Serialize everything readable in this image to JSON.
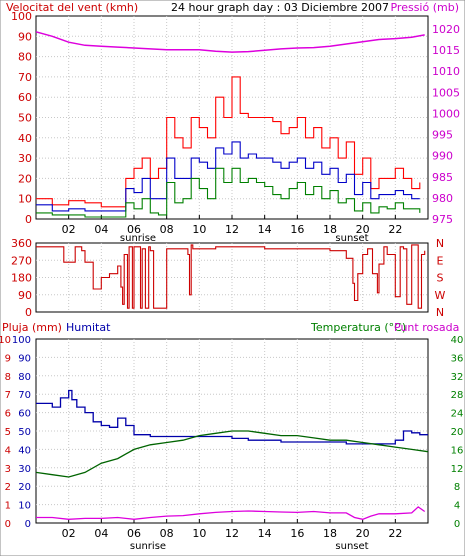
{
  "chart_data": [
    {
      "type": "line",
      "title": "24 hour graph day : 03 Diciembre 2007",
      "left_axis_label": "Velocitat del vent (kmh)",
      "right_axis_label": "Pressió (mb)",
      "left_ticks": [
        "0",
        "10",
        "20",
        "30",
        "40",
        "50",
        "60",
        "70",
        "80",
        "90",
        "100"
      ],
      "right_ticks": [
        "975",
        "980",
        "985",
        "990",
        "995",
        "1000",
        "1005",
        "1010",
        "1015",
        "1020"
      ],
      "ylim_left": [
        0,
        100
      ],
      "ylim_right": [
        975,
        1020
      ],
      "x_ticks": [
        "02",
        "04",
        "06",
        "08",
        "10",
        "12",
        "14",
        "16",
        "18",
        "20",
        "22"
      ],
      "xlim_hours": [
        0,
        24
      ],
      "annotations": {
        "sunrise": "sunrise",
        "sunset": "sunset"
      },
      "sunrise_hour": 6.5,
      "sunset_hour": 18.8,
      "colors": {
        "gust": "#ff0000",
        "wind_avg": "#0000c8",
        "wind_min": "#008000",
        "pressure": "#dd00dd"
      },
      "series": [
        {
          "key": "gust",
          "axis": "left",
          "x": [
            0,
            1,
            2,
            3,
            4,
            5,
            5.5,
            6,
            6.5,
            7,
            7.5,
            8,
            8.5,
            9,
            9.5,
            10,
            10.5,
            11,
            11.5,
            12,
            12.5,
            13,
            13.5,
            14,
            14.5,
            15,
            15.5,
            16,
            16.5,
            17,
            17.5,
            18,
            18.5,
            19,
            19.5,
            20,
            20.5,
            21,
            21.5,
            22,
            22.5,
            23,
            23.5
          ],
          "values": [
            10,
            7,
            9,
            8,
            6,
            6,
            20,
            25,
            30,
            20,
            25,
            50,
            40,
            35,
            50,
            45,
            40,
            60,
            50,
            70,
            52,
            50,
            50,
            50,
            48,
            42,
            45,
            50,
            40,
            45,
            35,
            40,
            30,
            38,
            22,
            30,
            15,
            20,
            20,
            25,
            20,
            15,
            18
          ]
        },
        {
          "key": "wind_avg",
          "axis": "left",
          "x": [
            0,
            1,
            2,
            3,
            4,
            5,
            5.5,
            6,
            6.5,
            7,
            7.5,
            8,
            8.5,
            9,
            9.5,
            10,
            10.5,
            11,
            11.5,
            12,
            12.5,
            13,
            13.5,
            14,
            14.5,
            15,
            15.5,
            16,
            16.5,
            17,
            17.5,
            18,
            18.5,
            19,
            19.5,
            20,
            20.5,
            21,
            21.5,
            22,
            22.5,
            23,
            23.5
          ],
          "values": [
            7,
            4,
            5,
            4,
            4,
            4,
            15,
            13,
            20,
            10,
            10,
            30,
            20,
            20,
            30,
            28,
            25,
            35,
            32,
            38,
            30,
            32,
            30,
            30,
            28,
            25,
            28,
            30,
            25,
            28,
            22,
            25,
            18,
            22,
            12,
            18,
            10,
            12,
            12,
            14,
            12,
            10,
            10
          ]
        },
        {
          "key": "wind_min",
          "axis": "left",
          "x": [
            0,
            1,
            2,
            3,
            4,
            5,
            5.5,
            6,
            6.5,
            7,
            7.5,
            8,
            8.5,
            9,
            9.5,
            10,
            10.5,
            11,
            11.5,
            12,
            12.5,
            13,
            13.5,
            14,
            14.5,
            15,
            15.5,
            16,
            16.5,
            17,
            17.5,
            18,
            18.5,
            19,
            19.5,
            20,
            20.5,
            21,
            21.5,
            22,
            22.5,
            23,
            23.5
          ],
          "values": [
            3,
            2,
            2,
            1,
            1,
            1,
            8,
            5,
            10,
            3,
            2,
            18,
            8,
            10,
            20,
            15,
            10,
            25,
            18,
            25,
            18,
            20,
            18,
            16,
            12,
            10,
            15,
            18,
            12,
            16,
            10,
            14,
            8,
            10,
            4,
            8,
            3,
            6,
            5,
            8,
            5,
            5,
            3
          ]
        },
        {
          "key": "pressure",
          "axis": "right",
          "x": [
            0,
            1,
            2,
            3,
            4,
            5,
            6,
            7,
            8,
            9,
            10,
            11,
            12,
            13,
            14,
            15,
            16,
            17,
            18,
            19,
            20,
            21,
            22,
            23,
            23.8
          ],
          "values": [
            1016.5,
            1015.5,
            1014.2,
            1013.5,
            1013.3,
            1013.1,
            1012.9,
            1012.7,
            1012.5,
            1012.5,
            1012.5,
            1012.2,
            1012.0,
            1012.1,
            1012.4,
            1012.7,
            1012.9,
            1013.0,
            1013.3,
            1013.8,
            1014.3,
            1014.8,
            1015.0,
            1015.3,
            1015.8
          ]
        }
      ]
    },
    {
      "type": "line",
      "left_ticks": [
        "0",
        "90",
        "180",
        "270",
        "360"
      ],
      "right_ticks": [
        "N",
        "W",
        "S",
        "E",
        "N"
      ],
      "ylim_left": [
        0,
        360
      ],
      "xlim_hours": [
        0,
        24
      ],
      "colors": {
        "direction": "#cc0000"
      },
      "series": [
        {
          "key": "direction",
          "x": [
            0,
            1.5,
            1.7,
            2.2,
            2.4,
            2.8,
            3.0,
            3.5,
            4.0,
            4.5,
            5.0,
            5.2,
            5.3,
            5.4,
            5.6,
            5.7,
            5.9,
            6.0,
            6.4,
            6.5,
            6.7,
            6.9,
            7.0,
            7.2,
            8.0,
            9.0,
            9.3,
            9.4,
            9.5,
            9.6,
            10.0,
            11.0,
            12.0,
            13.0,
            14.0,
            15.0,
            16.0,
            17.0,
            18.0,
            18.5,
            19.0,
            19.4,
            19.5,
            19.7,
            20.0,
            20.3,
            20.6,
            20.9,
            21.0,
            21.3,
            21.5,
            22.0,
            22.3,
            22.5,
            22.7,
            23.0,
            23.2,
            23.4,
            23.6,
            23.8
          ],
          "values": [
            340,
            340,
            260,
            260,
            340,
            320,
            260,
            120,
            180,
            200,
            240,
            130,
            40,
            300,
            20,
            340,
            20,
            340,
            20,
            330,
            20,
            340,
            320,
            20,
            330,
            330,
            300,
            90,
            350,
            330,
            330,
            340,
            340,
            340,
            330,
            330,
            330,
            330,
            320,
            320,
            280,
            150,
            60,
            200,
            300,
            330,
            200,
            100,
            250,
            340,
            300,
            80,
            340,
            330,
            40,
            350,
            350,
            20,
            300,
            320
          ]
        }
      ]
    },
    {
      "type": "line",
      "left_axis_label_1": "Pluja (mm)",
      "left_axis_label_2": "Humitat",
      "right_axis_label_1": "Temperatura (°C)",
      "right_axis_label_2": "Punt rosada",
      "left_ticks_rain": [
        "0",
        "1",
        "2",
        "3",
        "4",
        "5",
        "6",
        "7",
        "8",
        "9",
        "10"
      ],
      "left_ticks_humidity": [
        "0",
        "10",
        "20",
        "30",
        "40",
        "50",
        "60",
        "70",
        "80",
        "90",
        "100"
      ],
      "right_ticks": [
        "0",
        "4",
        "8",
        "12",
        "16",
        "20",
        "24",
        "28",
        "32",
        "36",
        "40"
      ],
      "ylim_humidity": [
        0,
        100
      ],
      "ylim_temp": [
        0,
        40
      ],
      "x_ticks": [
        "02",
        "04",
        "06",
        "08",
        "10",
        "12",
        "14",
        "16",
        "18",
        "20",
        "22"
      ],
      "xlim_hours": [
        0,
        24
      ],
      "annotations": {
        "sunrise": "sunrise",
        "sunset": "sunset"
      },
      "colors": {
        "humidity": "#0000aa",
        "temperature": "#006400",
        "dew_point": "#dd00dd"
      },
      "series": [
        {
          "key": "humidity",
          "axis": "humidity",
          "x": [
            0,
            0.5,
            1,
            1.5,
            2,
            2.2,
            2.5,
            3,
            3.5,
            4,
            4.5,
            5,
            5.5,
            6,
            6.5,
            7,
            8,
            9,
            10,
            11,
            12,
            13,
            14,
            15,
            16,
            17,
            18,
            19,
            20,
            21,
            22,
            22.5,
            23,
            23.5,
            24
          ],
          "values": [
            65,
            65,
            63,
            68,
            72,
            67,
            63,
            60,
            55,
            53,
            52,
            57,
            53,
            48,
            48,
            47,
            47,
            47,
            47,
            47,
            46,
            45,
            45,
            44,
            44,
            44,
            44,
            43,
            43,
            43,
            45,
            50,
            49,
            48,
            48
          ]
        },
        {
          "key": "temperature",
          "axis": "temp",
          "x": [
            0,
            1,
            2,
            3,
            4,
            5,
            6,
            7,
            8,
            9,
            10,
            11,
            12,
            13,
            14,
            15,
            16,
            17,
            18,
            19,
            20,
            21,
            22,
            23,
            24
          ],
          "values": [
            11,
            10.5,
            10,
            11,
            13,
            14,
            16,
            17,
            17.5,
            18,
            19,
            19.5,
            20,
            20,
            19.5,
            19,
            19,
            18.5,
            18,
            18,
            17.5,
            17,
            16.5,
            16,
            15.5
          ]
        },
        {
          "key": "dew_point",
          "axis": "temp",
          "x": [
            0,
            1,
            2,
            3,
            4,
            5,
            6,
            7,
            8,
            9,
            10,
            11,
            12,
            13,
            14,
            15,
            16,
            17,
            18,
            19,
            19.5,
            20,
            20.5,
            21,
            22,
            23,
            23.4,
            23.8
          ],
          "values": [
            1.2,
            1.2,
            0.8,
            1,
            1,
            1.2,
            0.8,
            1.2,
            1.5,
            1.6,
            2,
            2.3,
            2.5,
            2.6,
            2.5,
            2.4,
            2.3,
            2.5,
            2.2,
            2.2,
            1.2,
            0.8,
            1.5,
            2,
            2,
            2.2,
            3.5,
            2.5
          ]
        }
      ]
    }
  ]
}
